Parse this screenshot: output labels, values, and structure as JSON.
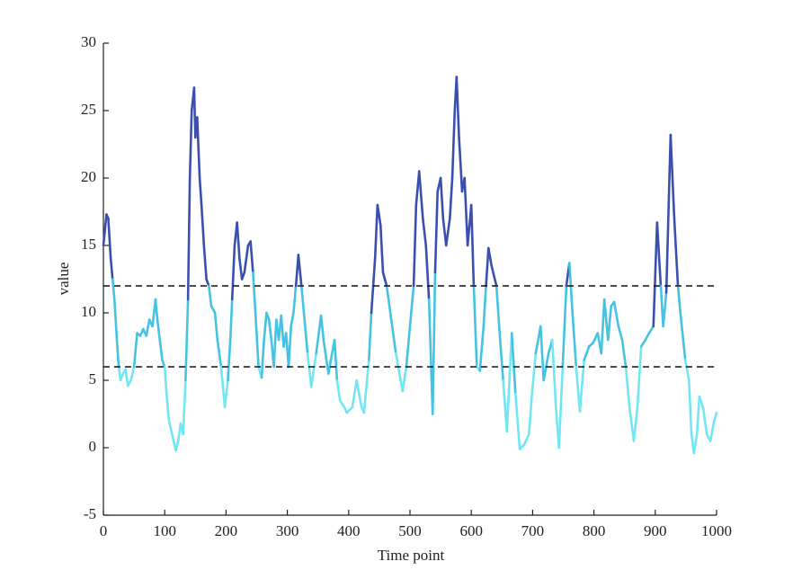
{
  "chart_data": {
    "type": "line",
    "xlabel": "Time point",
    "ylabel": "value",
    "x": [
      0,
      5,
      8,
      12,
      15,
      18,
      22,
      25,
      28,
      32,
      36,
      40,
      45,
      50,
      55,
      60,
      65,
      70,
      75,
      80,
      85,
      88,
      92,
      96,
      100,
      103,
      107,
      112,
      118,
      122,
      126,
      130,
      134,
      138,
      141,
      144,
      148,
      150,
      153,
      157,
      160,
      164,
      168,
      172,
      176,
      182,
      186,
      192,
      198,
      203,
      207,
      210,
      214,
      218,
      222,
      226,
      230,
      236,
      240,
      244,
      248,
      253,
      258,
      262,
      266,
      270,
      274,
      278,
      282,
      286,
      290,
      294,
      298,
      302,
      306,
      310,
      314,
      318,
      323,
      333,
      339,
      347,
      355,
      359,
      367,
      371,
      377,
      381,
      386,
      393,
      397,
      406,
      413,
      421,
      425,
      433,
      437,
      443,
      447,
      452,
      456,
      462,
      468,
      477,
      488,
      494,
      500,
      506,
      510,
      515,
      521,
      526,
      531,
      537,
      541,
      545,
      550,
      554,
      559,
      565,
      569,
      573,
      576,
      580,
      585,
      589,
      594,
      600,
      604,
      609,
      614,
      620,
      624,
      628,
      633,
      641,
      647,
      652,
      658,
      666,
      672,
      679,
      686,
      694,
      699,
      705,
      713,
      718,
      726,
      732,
      738,
      743,
      749,
      755,
      760,
      765,
      771,
      777,
      784,
      792,
      799,
      806,
      812,
      817,
      823,
      828,
      833,
      840,
      846,
      852,
      858,
      865,
      871,
      877,
      884,
      890,
      897,
      903,
      909,
      913,
      918,
      925,
      931,
      937,
      941,
      949,
      955,
      959,
      963,
      968,
      972,
      978,
      984,
      990,
      996,
      1000
    ],
    "series": [
      {
        "values": [
          15,
          17.3,
          17,
          14,
          12.5,
          11,
          8,
          6,
          5,
          5.5,
          5.8,
          4.6,
          5,
          6,
          8.5,
          8.3,
          8.8,
          8.3,
          9.5,
          9,
          11,
          9.5,
          8,
          6.5,
          6,
          4,
          2,
          1,
          -0.2,
          0.5,
          1.8,
          1,
          5,
          11,
          20,
          25,
          26.7,
          23,
          24.5,
          20,
          18,
          15,
          12.5,
          12,
          10.5,
          10,
          8,
          6,
          3,
          5,
          8,
          11,
          15,
          16.7,
          14,
          12.5,
          13,
          15,
          15.3,
          13,
          10,
          6,
          5.2,
          8,
          10,
          9.5,
          8,
          6,
          9.5,
          8,
          9.8,
          7.5,
          8.5,
          6,
          9,
          10,
          12,
          14.3,
          12,
          7,
          4.5,
          7,
          9.8,
          8,
          5.5,
          6.5,
          8,
          5,
          3.5,
          3,
          2.6,
          3,
          5,
          3,
          2.6,
          6.5,
          10,
          14,
          18,
          16.5,
          13,
          12,
          10,
          7,
          4.2,
          6,
          9,
          12,
          18,
          20.5,
          17,
          15,
          11,
          2.5,
          13,
          19,
          20,
          17,
          15,
          17,
          20,
          25,
          27.5,
          23,
          19,
          20,
          15,
          18,
          12,
          6,
          5.7,
          9,
          12,
          14.8,
          13.5,
          12,
          8,
          5,
          1.2,
          8.5,
          4,
          -0.1,
          0.2,
          1,
          4,
          7,
          9,
          5,
          7,
          8,
          3,
          0,
          6,
          12,
          13.7,
          10,
          6,
          2.7,
          6.5,
          7.5,
          7.8,
          8.5,
          7,
          11,
          8,
          10.5,
          10.8,
          9,
          8,
          6,
          3,
          0.5,
          3,
          7.5,
          8,
          8.5,
          9,
          16.7,
          12,
          9,
          11.5,
          23.2,
          17,
          12,
          10,
          6.5,
          5,
          1,
          -0.4,
          1,
          3.8,
          3,
          1,
          0.5,
          2,
          2.6
        ]
      }
    ],
    "thresholds": [
      6,
      12
    ],
    "band_colors": [
      "#72e6f2",
      "#45c3e2",
      "#3b4fae"
    ],
    "reference_lines": [
      12,
      6
    ],
    "xlim": [
      0,
      1000
    ],
    "xticks": [
      0,
      100,
      200,
      300,
      400,
      500,
      600,
      700,
      800,
      900,
      1000
    ],
    "ylim": [
      -5,
      30
    ],
    "yticks": [
      -5,
      0,
      5,
      10,
      15,
      20,
      25,
      30
    ]
  }
}
